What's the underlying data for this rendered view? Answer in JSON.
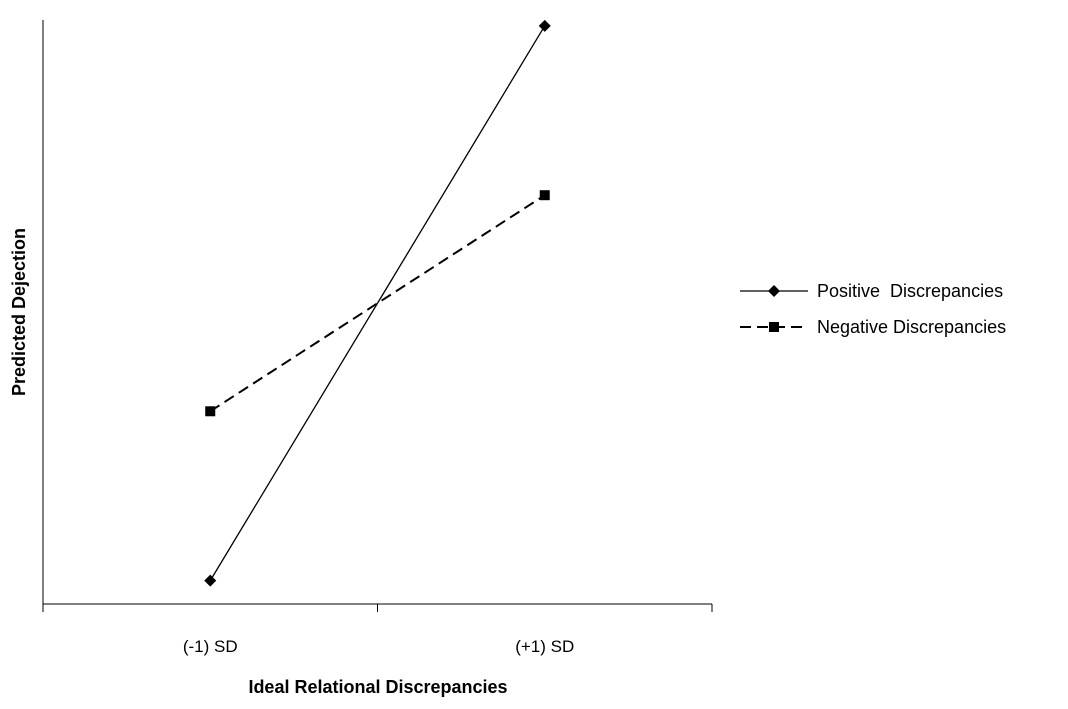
{
  "chart_data": {
    "type": "line",
    "title": "",
    "xlabel": "Ideal Relational Discrepancies",
    "ylabel": "Predicted Dejection",
    "categories": [
      "(-1) SD",
      "(+1) SD"
    ],
    "ylim": [
      0,
      100
    ],
    "grid": false,
    "y_tick_labels": false,
    "legend": {
      "position": "right",
      "entries": [
        "Positive  Discrepancies",
        "Negative Discrepancies"
      ]
    },
    "series": [
      {
        "name": "Positive  Discrepancies",
        "values": [
          4,
          99
        ],
        "line_style": "solid",
        "marker": "diamond",
        "color": "#000000"
      },
      {
        "name": "Negative Discrepancies",
        "values": [
          33,
          70
        ],
        "line_style": "dashed",
        "marker": "square",
        "color": "#000000"
      }
    ]
  }
}
